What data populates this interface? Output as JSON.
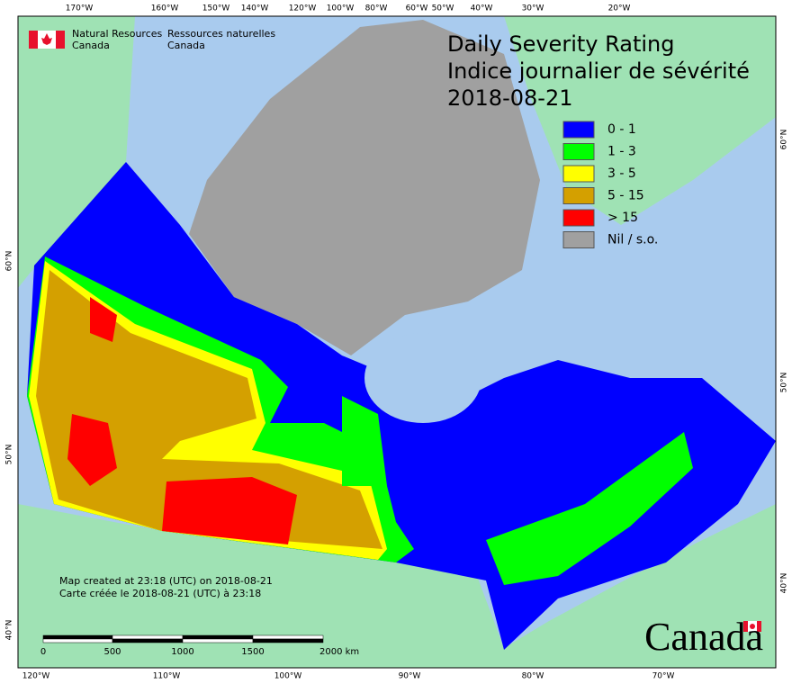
{
  "header": {
    "agency_en": [
      "Natural Resources",
      "Canada"
    ],
    "agency_fr": [
      "Ressources naturelles",
      "Canada"
    ]
  },
  "title": [
    "Daily Severity Rating",
    "Indice journalier de sévérité",
    "2018-08-21"
  ],
  "legend": [
    {
      "label": "0 - 1",
      "color": "#0000ff"
    },
    {
      "label": "1 - 3",
      "color": "#00ff00"
    },
    {
      "label": "3 - 5",
      "color": "#ffff00"
    },
    {
      "label": "5 - 15",
      "color": "#d4a000"
    },
    {
      "label": "> 15",
      "color": "#ff0000"
    },
    {
      "label": "Nil / s.o.",
      "color": "#a0a0a0"
    }
  ],
  "graticule": {
    "top": [
      "170°W",
      "160°W",
      "150°W",
      "140°W",
      "120°W",
      "100°W",
      "80°W",
      "60°W",
      "50°W",
      "40°W",
      "30°W",
      "20°W"
    ],
    "bottom": [
      "120°W",
      "110°W",
      "100°W",
      "90°W",
      "80°W",
      "70°W"
    ],
    "left": [
      "60°N",
      "50°N",
      "40°N"
    ],
    "right": [
      "60°N",
      "50°N",
      "40°N"
    ]
  },
  "notes": [
    "Map created at 23:18 (UTC) on 2018-08-21",
    "Carte créée le 2018-08-21 (UTC) à 23:18"
  ],
  "scale_bar": [
    "0",
    "500",
    "1000",
    "1500",
    "2000 km"
  ],
  "wordmark": "Canada"
}
